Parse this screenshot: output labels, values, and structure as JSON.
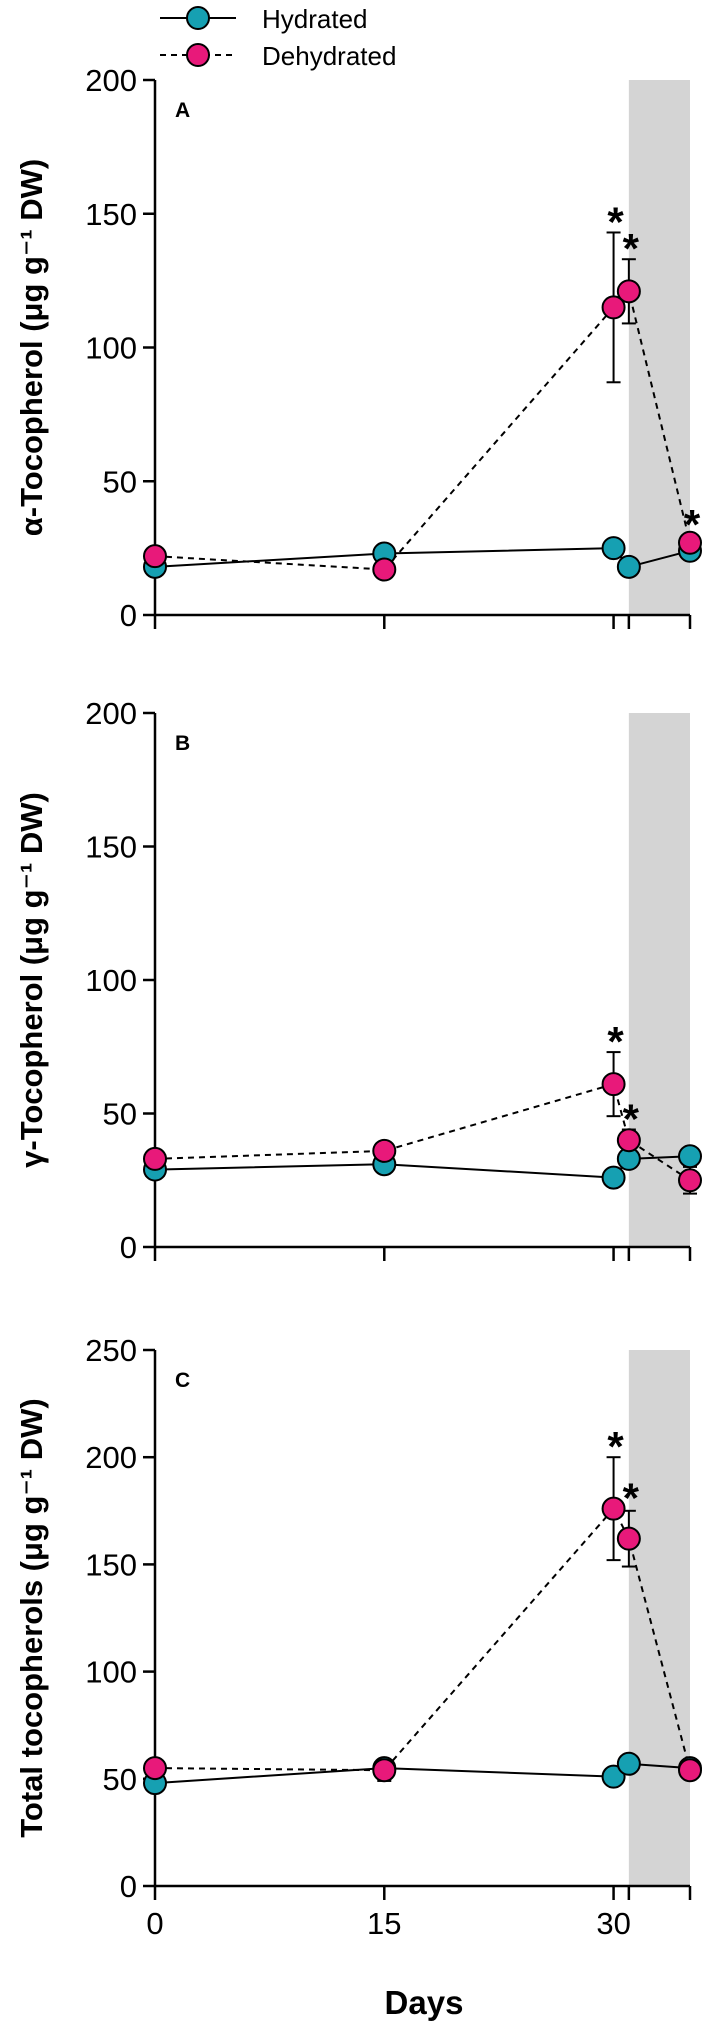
{
  "legend": {
    "hydrated": "Hydrated",
    "dehydrated": "Dehydrated"
  },
  "colors": {
    "hydrated": "#16a0b2",
    "dehydrated": "#e8197a",
    "shade": "#d4d4d4"
  },
  "chart_data": [
    {
      "type": "line",
      "panel_label": "A",
      "ylabel": "α-Tocopherol (μg g⁻¹ DW)",
      "xlabel": "",
      "ylim": [
        0,
        200
      ],
      "yticks": [
        0,
        50,
        100,
        150,
        200
      ],
      "xticks": [
        0,
        15,
        30
      ],
      "xlim": [
        0,
        35
      ],
      "shaded_x": [
        31,
        35
      ],
      "series": [
        {
          "name": "Hydrated",
          "x": [
            0,
            15,
            30,
            31,
            35
          ],
          "y": [
            18,
            23,
            25,
            18,
            24
          ]
        },
        {
          "name": "Dehydrated",
          "x": [
            0,
            15,
            30,
            31,
            35
          ],
          "y": [
            22,
            17,
            115,
            121,
            27
          ],
          "err": [
            0,
            0,
            28,
            12,
            0
          ]
        }
      ],
      "annotations": [
        {
          "text": "*",
          "x": 30,
          "y": 143
        },
        {
          "text": "*",
          "x": 31,
          "y": 133
        },
        {
          "text": "*",
          "x": 35,
          "y": 30
        }
      ]
    },
    {
      "type": "line",
      "panel_label": "B",
      "ylabel": "γ-Tocopherol (μg g⁻¹ DW)",
      "xlabel": "",
      "ylim": [
        0,
        200
      ],
      "yticks": [
        0,
        50,
        100,
        150,
        200
      ],
      "xticks": [
        0,
        15,
        30
      ],
      "xlim": [
        0,
        35
      ],
      "shaded_x": [
        31,
        35
      ],
      "series": [
        {
          "name": "Hydrated",
          "x": [
            0,
            15,
            30,
            31,
            35
          ],
          "y": [
            29,
            31,
            26,
            33,
            34
          ]
        },
        {
          "name": "Dehydrated",
          "x": [
            0,
            15,
            30,
            31,
            35
          ],
          "y": [
            33,
            36,
            61,
            40,
            25
          ],
          "err": [
            0,
            3,
            12,
            4,
            5
          ]
        }
      ],
      "annotations": [
        {
          "text": "*",
          "x": 30,
          "y": 73
        },
        {
          "text": "*",
          "x": 31,
          "y": 44
        }
      ]
    },
    {
      "type": "line",
      "panel_label": "C",
      "ylabel": "Total tocopherols (μg g⁻¹ DW)",
      "xlabel": "Days",
      "ylim": [
        0,
        250
      ],
      "yticks": [
        0,
        50,
        100,
        150,
        200,
        250
      ],
      "xticks": [
        0,
        15,
        30
      ],
      "xlim": [
        0,
        35
      ],
      "shaded_x": [
        31,
        35
      ],
      "series": [
        {
          "name": "Hydrated",
          "x": [
            0,
            15,
            30,
            31,
            35
          ],
          "y": [
            48,
            55,
            51,
            57,
            55
          ]
        },
        {
          "name": "Dehydrated",
          "x": [
            0,
            15,
            30,
            31,
            35
          ],
          "y": [
            55,
            54,
            176,
            162,
            54
          ],
          "err": [
            0,
            5,
            24,
            13,
            3
          ]
        }
      ],
      "annotations": [
        {
          "text": "*",
          "x": 30,
          "y": 200
        },
        {
          "text": "*",
          "x": 31,
          "y": 176
        }
      ]
    }
  ]
}
